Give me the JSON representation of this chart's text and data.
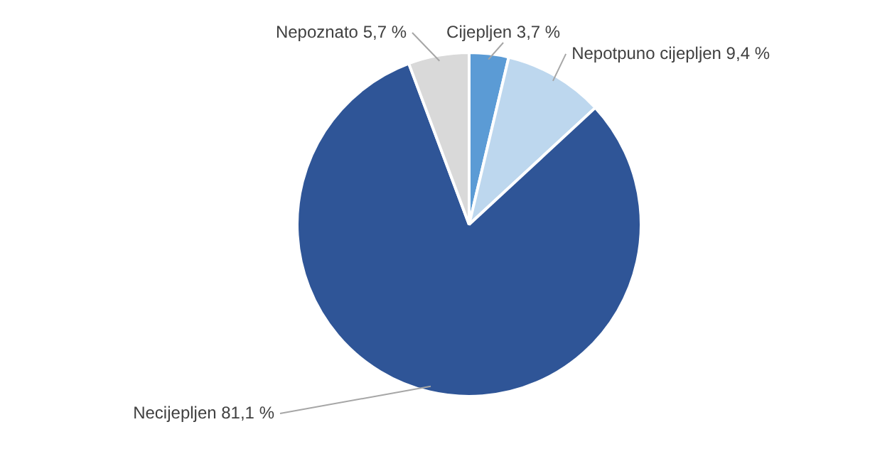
{
  "chart_data": {
    "type": "pie",
    "categories": [
      "Cijepljen",
      "Nepotpuno cijepljen",
      "Necijepljen",
      "Nepoznato"
    ],
    "values": [
      3.7,
      9.4,
      81.1,
      5.7
    ],
    "value_labels": [
      "3,7 %",
      "9,4 %",
      "81,1 %",
      "5,7 %"
    ],
    "colors": [
      "#5b9bd5",
      "#bdd7ee",
      "#2f5597",
      "#d9d9d9"
    ],
    "legend": false
  }
}
